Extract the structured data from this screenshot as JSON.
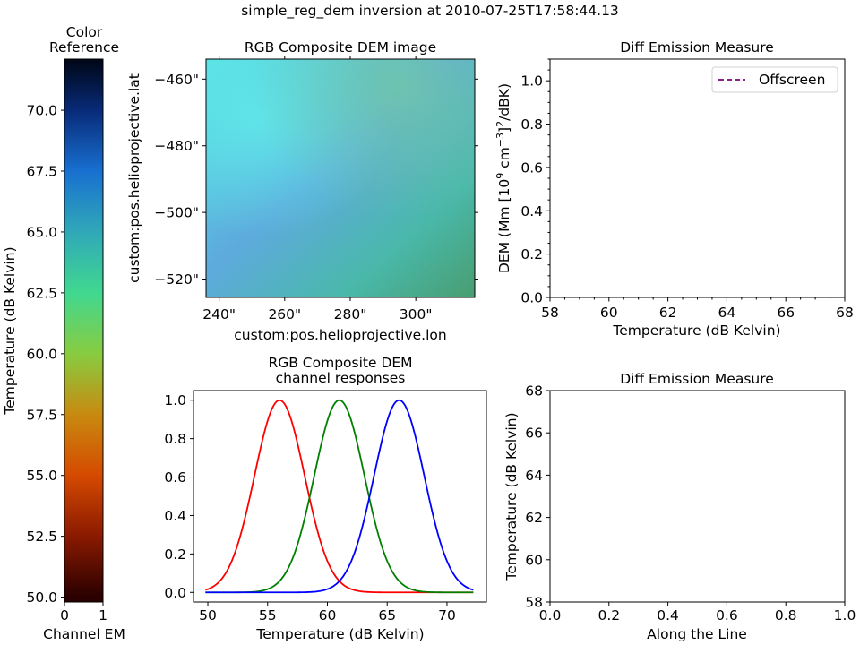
{
  "figure": {
    "suptitle": "simple_reg_dem inversion at 2010-07-25T17:58:44.13"
  },
  "chart_data": [
    {
      "id": "colorbar",
      "type": "heatmap",
      "title": "Color\nReference",
      "xlabel": "Channel EM",
      "ylabel": "Temperature (dB Kelvin)",
      "xlim": [
        0,
        1
      ],
      "ylim": [
        49.8,
        72.1
      ],
      "xticks": [
        0,
        1
      ],
      "xtick_labels": [
        "0",
        "1"
      ],
      "yticks": [
        50,
        52.5,
        55,
        57.5,
        60,
        62.5,
        65,
        67.5,
        70
      ],
      "ytick_labels": [
        "50.0",
        "52.5",
        "55.0",
        "57.5",
        "60.0",
        "62.5",
        "65.0",
        "67.5",
        "70.0"
      ],
      "colormap": [
        {
          "t": 50.0,
          "color": "#2a0000"
        },
        {
          "t": 52.5,
          "color": "#8a1a00"
        },
        {
          "t": 55.0,
          "color": "#d54a00"
        },
        {
          "t": 57.5,
          "color": "#c88a10"
        },
        {
          "t": 60.0,
          "color": "#88cc40"
        },
        {
          "t": 62.5,
          "color": "#40d890"
        },
        {
          "t": 65.0,
          "color": "#30a8b8"
        },
        {
          "t": 67.5,
          "color": "#1870d0"
        },
        {
          "t": 70.0,
          "color": "#082a78"
        },
        {
          "t": 72.0,
          "color": "#00081a"
        }
      ]
    },
    {
      "id": "rgb-image",
      "type": "heatmap",
      "title": "RGB Composite DEM image",
      "xlabel": "custom:pos.helioprojective.lon",
      "ylabel": "custom:pos.helioprojective.lat",
      "xlim": [
        236,
        318
      ],
      "ylim": [
        -525.5,
        -454
      ],
      "xticks": [
        240,
        260,
        280,
        300
      ],
      "xtick_labels": [
        "240\"",
        "260\"",
        "280\"",
        "300\""
      ],
      "yticks": [
        -460,
        -480,
        -500,
        -520
      ],
      "ytick_labels": [
        "−460\"",
        "−480\"",
        "−500\"",
        "−520\""
      ],
      "image_colors": {
        "cyan": "#4ee6e6",
        "teal": "#3eb8a8",
        "green": "#3d9a6a",
        "blue": "#54a8e0"
      }
    },
    {
      "id": "dem-plot",
      "type": "line",
      "title": "Diff Emission Measure",
      "xlabel": "Temperature (dB Kelvin)",
      "ylabel": "DEM (Mm [10^9 cm^-3]^2/dBK)",
      "xlim": [
        58,
        68
      ],
      "ylim": [
        0,
        1.1
      ],
      "xticks": [
        58,
        60,
        62,
        64,
        66,
        68
      ],
      "xtick_labels": [
        "58",
        "60",
        "62",
        "64",
        "66",
        "68"
      ],
      "yticks": [
        0,
        0.2,
        0.4,
        0.6,
        0.8,
        1.0
      ],
      "ytick_labels": [
        "0.0",
        "0.2",
        "0.4",
        "0.6",
        "0.8",
        "1.0"
      ],
      "series": [
        {
          "name": "Offscreen",
          "color": "#800080",
          "style": "dashed",
          "x": [],
          "y": []
        }
      ],
      "legend": "top-right"
    },
    {
      "id": "channel-responses",
      "type": "line",
      "title": "RGB Composite DEM\nchannel responses",
      "xlabel": "Temperature (dB Kelvin)",
      "ylabel": "",
      "xlim": [
        48.8,
        73.3
      ],
      "ylim": [
        -0.05,
        1.05
      ],
      "xticks": [
        50,
        55,
        60,
        65,
        70
      ],
      "xtick_labels": [
        "50",
        "55",
        "60",
        "65",
        "70"
      ],
      "yticks": [
        0,
        0.2,
        0.4,
        0.6,
        0.8,
        1.0
      ],
      "ytick_labels": [
        "0.0",
        "0.2",
        "0.4",
        "0.6",
        "0.8",
        "1.0"
      ],
      "x_range": [
        49.8,
        72.2
      ],
      "series": [
        {
          "color": "#ff0000",
          "center": 56,
          "sigma": 2.1
        },
        {
          "color": "#008000",
          "center": 61,
          "sigma": 2.1
        },
        {
          "color": "#0000ff",
          "center": 66,
          "sigma": 2.1
        }
      ]
    },
    {
      "id": "line-profile",
      "type": "line",
      "title": "Diff Emission Measure",
      "xlabel": "Along the Line",
      "ylabel": "Temperature (dB Kelvin)",
      "xlim": [
        0,
        1
      ],
      "ylim": [
        58,
        68
      ],
      "xticks": [
        0,
        0.2,
        0.4,
        0.6,
        0.8,
        1.0
      ],
      "xtick_labels": [
        "0.0",
        "0.2",
        "0.4",
        "0.6",
        "0.8",
        "1.0"
      ],
      "yticks": [
        58,
        60,
        62,
        64,
        66,
        68
      ],
      "ytick_labels": [
        "58",
        "60",
        "62",
        "64",
        "66",
        "68"
      ],
      "series": []
    }
  ]
}
